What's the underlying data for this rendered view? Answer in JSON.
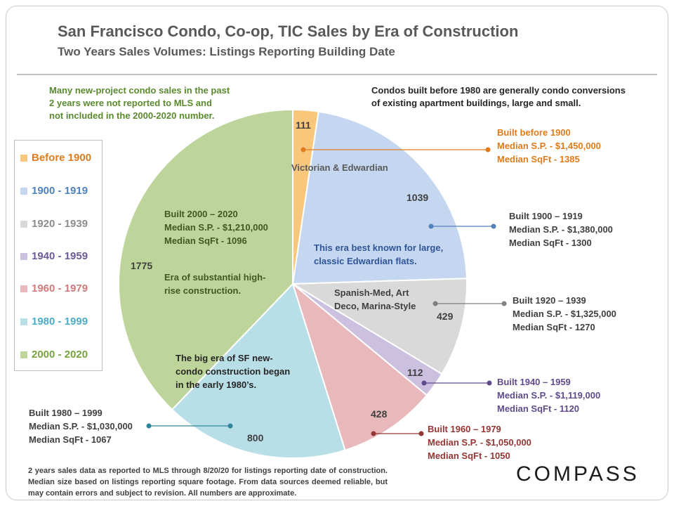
{
  "title": "San Francisco Condo, Co-op, TIC Sales by Era of Construction",
  "subtitle": "Two Years Sales Volumes: Listings Reporting Building Date",
  "notes": {
    "left": [
      "Many new-project condo sales in the past",
      "2 years were not reported to MLS and",
      "not included in the 2000-2020 number."
    ],
    "right": [
      "Condos built before 1980 are generally condo conversions",
      "of existing apartment buildings, large and small."
    ]
  },
  "chart_data": {
    "type": "pie",
    "title": "San Francisco Condo, Co-op, TIC Sales by Era of Construction",
    "categories": [
      "Before 1900",
      "1900 - 1919",
      "1920 - 1939",
      "1940 - 1959",
      "1960 - 1979",
      "1980 - 1999",
      "2000 - 2020"
    ],
    "values": [
      111,
      1039,
      429,
      112,
      428,
      800,
      1775
    ],
    "colors": [
      "#f9c77c",
      "#c5d7f0",
      "#d9d9d9",
      "#cbc0df",
      "#e8b8ba",
      "#b8dfe8",
      "#bdd59b"
    ],
    "legend_placement": "left"
  },
  "legend": [
    {
      "label": "Before 1900",
      "color": "#f9c77c",
      "text_color": "#e07b1b"
    },
    {
      "label": "1900 - 1919",
      "color": "#c5d7f0",
      "text_color": "#4f81bd"
    },
    {
      "label": "1920 - 1939",
      "color": "#d9d9d9",
      "text_color": "#8c8c8c"
    },
    {
      "label": "1940 - 1959",
      "color": "#cbc0df",
      "text_color": "#6c5a9a"
    },
    {
      "label": "1960 - 1979",
      "color": "#e8b8ba",
      "text_color": "#d27a7a"
    },
    {
      "label": "1980 - 1999",
      "color": "#b8dfe8",
      "text_color": "#4bacc6"
    },
    {
      "label": "2000 - 2020",
      "color": "#bdd59b",
      "text_color": "#77a33d"
    }
  ],
  "slice_labels": {
    "before1900": "111",
    "e1900": "1039",
    "e1920": "429",
    "e1940": "112",
    "e1960": "428",
    "e1980": "800",
    "e2000": "1775"
  },
  "inner_text": {
    "victorian": "Victorian & Edwardian",
    "edwardian_note": [
      "This era best known for large,",
      "classic Edwardian flats."
    ],
    "spanish": [
      "Spanish-Med, Art",
      "Deco, Marina-Style"
    ],
    "built2000": [
      "Built 2000 – 2020",
      "Median S.P. - $1,210,000",
      "Median SqFt - 1096"
    ],
    "highrise": [
      "Era of substantial high-",
      "rise construction."
    ],
    "bigera": [
      "The big era of SF new-",
      "condo construction began",
      "in the early 1980’s."
    ]
  },
  "callouts": {
    "before1900": [
      "Built before 1900",
      "Median S.P. - $1,450,000",
      "Median SqFt - 1385"
    ],
    "e1900": [
      "Built 1900 – 1919",
      "Median S.P. - $1,380,000",
      "Median SqFt - 1300"
    ],
    "e1920": [
      "Built 1920 – 1939",
      "Median S.P. - $1,325,000",
      "Median SqFt - 1270"
    ],
    "e1940": [
      "Built 1940 – 1959",
      "Median S.P. - $1,119,000",
      "Median SqFt - 1120"
    ],
    "e1960": [
      "Built 1960 – 1979",
      "Median S.P. - $1,050,000",
      "Median SqFt - 1050"
    ],
    "e1980": [
      "Built 1980 – 1999",
      "Median S.P. - $1,030,000",
      "Median SqFt - 1067"
    ]
  },
  "footnote": "2 years sales data as reported to MLS through 8/20/20 for listings reporting date of construction. Median size  based on listings reporting square footage. From data sources deemed reliable, but may contain errors and subject to revision. All numbers are approximate.",
  "logo": "COMPASS"
}
